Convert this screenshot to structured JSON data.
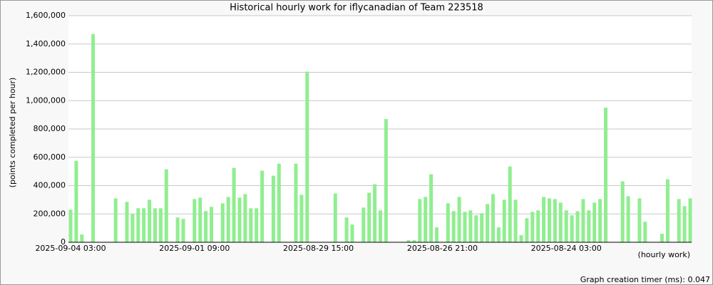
{
  "chart_data": {
    "type": "bar",
    "title": "Historical hourly work for iflycanadian of Team 223518",
    "y_label": "(points completed per hour)",
    "x_label": "(hourly work)",
    "footer": "Graph creation timer (ms): 0.047",
    "color": "#90ee90",
    "grid": true,
    "ylim": [
      0,
      1600000
    ],
    "yticks": [
      0,
      {
        "value": 200000,
        "label": "200,000"
      },
      {
        "value": 400000,
        "label": "400,000"
      },
      {
        "value": 600000,
        "label": "600,000"
      },
      {
        "value": 800000,
        "label": "800,000"
      },
      {
        "value": 1000000,
        "label": "1,000,000"
      },
      {
        "value": 1200000,
        "label": "1,200,000"
      },
      {
        "value": 1400000,
        "label": "1,400,000"
      },
      {
        "value": 1600000,
        "label": "1,600,000"
      }
    ],
    "categories": [
      "2025-09-04 03:00",
      null,
      null,
      null,
      null,
      null,
      null,
      null,
      null,
      null,
      null,
      null,
      null,
      null,
      null,
      null,
      null,
      null,
      null,
      null,
      null,
      null,
      "2025-09-01 09:00",
      null,
      null,
      null,
      null,
      null,
      null,
      null,
      null,
      null,
      null,
      null,
      null,
      null,
      null,
      null,
      null,
      null,
      null,
      null,
      null,
      null,
      "2025-08-29 15:00",
      null,
      null,
      null,
      null,
      null,
      null,
      null,
      null,
      null,
      null,
      null,
      null,
      null,
      null,
      null,
      null,
      null,
      null,
      null,
      null,
      null,
      "2025-08-26 21:00",
      null,
      null,
      null,
      null,
      null,
      null,
      null,
      null,
      null,
      null,
      null,
      null,
      null,
      null,
      null,
      null,
      null,
      null,
      null,
      null,
      null,
      "2025-08-24 03:00",
      null,
      null,
      null,
      null,
      null,
      null,
      null,
      null,
      null,
      null,
      null,
      null,
      null,
      null,
      null,
      null,
      null,
      null,
      null,
      null,
      null,
      null
    ],
    "values": [
      230000,
      575000,
      55000,
      0,
      1470000,
      0,
      0,
      0,
      310000,
      0,
      285000,
      200000,
      240000,
      240000,
      300000,
      240000,
      240000,
      515000,
      0,
      175000,
      165000,
      0,
      305000,
      315000,
      220000,
      250000,
      0,
      275000,
      320000,
      525000,
      315000,
      340000,
      240000,
      240000,
      505000,
      0,
      470000,
      555000,
      0,
      0,
      555000,
      335000,
      1205000,
      0,
      0,
      0,
      0,
      345000,
      0,
      175000,
      125000,
      0,
      245000,
      350000,
      410000,
      225000,
      870000,
      0,
      0,
      0,
      15000,
      15000,
      305000,
      320000,
      480000,
      105000,
      0,
      275000,
      220000,
      320000,
      215000,
      225000,
      190000,
      205000,
      270000,
      340000,
      105000,
      300000,
      535000,
      300000,
      50000,
      170000,
      215000,
      225000,
      320000,
      310000,
      305000,
      280000,
      225000,
      190000,
      220000,
      305000,
      225000,
      280000,
      305000,
      950000,
      0,
      0,
      430000,
      325000,
      0,
      310000,
      145000,
      0,
      0,
      60000,
      445000,
      0,
      305000,
      255000,
      310000
    ]
  }
}
